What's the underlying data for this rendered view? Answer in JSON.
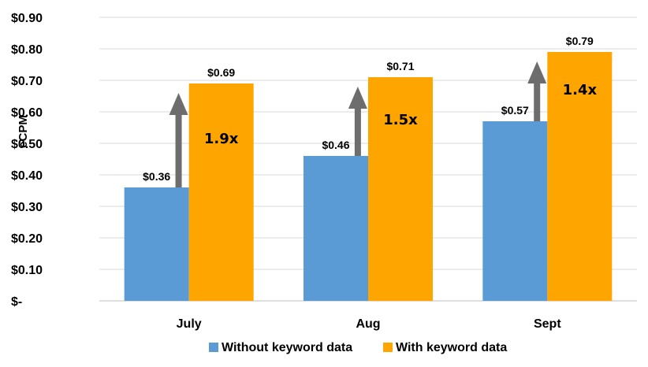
{
  "chart_data": {
    "type": "bar",
    "title": "",
    "xlabel": "",
    "ylabel": "eCPM",
    "ylim": [
      0,
      0.9
    ],
    "y_tick_labels": [
      "$-",
      "$0.10",
      "$0.20",
      "$0.30",
      "$0.40",
      "$0.50",
      "$0.60",
      "$0.70",
      "$0.80",
      "$0.90"
    ],
    "grid": true,
    "legend_position": "bottom",
    "categories": [
      "July",
      "Aug",
      "Sept"
    ],
    "series": [
      {
        "name": "Without keyword data",
        "color": "#5b9bd5",
        "values": [
          0.36,
          0.46,
          0.57
        ],
        "labels": [
          "$0.36",
          "$0.46",
          "$0.57"
        ]
      },
      {
        "name": "With keyword data",
        "color": "#ffa500",
        "values": [
          0.69,
          0.71,
          0.79
        ],
        "labels": [
          "$0.69",
          "$0.71",
          "$0.79"
        ]
      }
    ],
    "annotations": [
      {
        "category": "July",
        "text": "1.9x"
      },
      {
        "category": "Aug",
        "text": "1.5x"
      },
      {
        "category": "Sept",
        "text": "1.4x"
      }
    ],
    "arrow_color": "#6d6d6d"
  }
}
